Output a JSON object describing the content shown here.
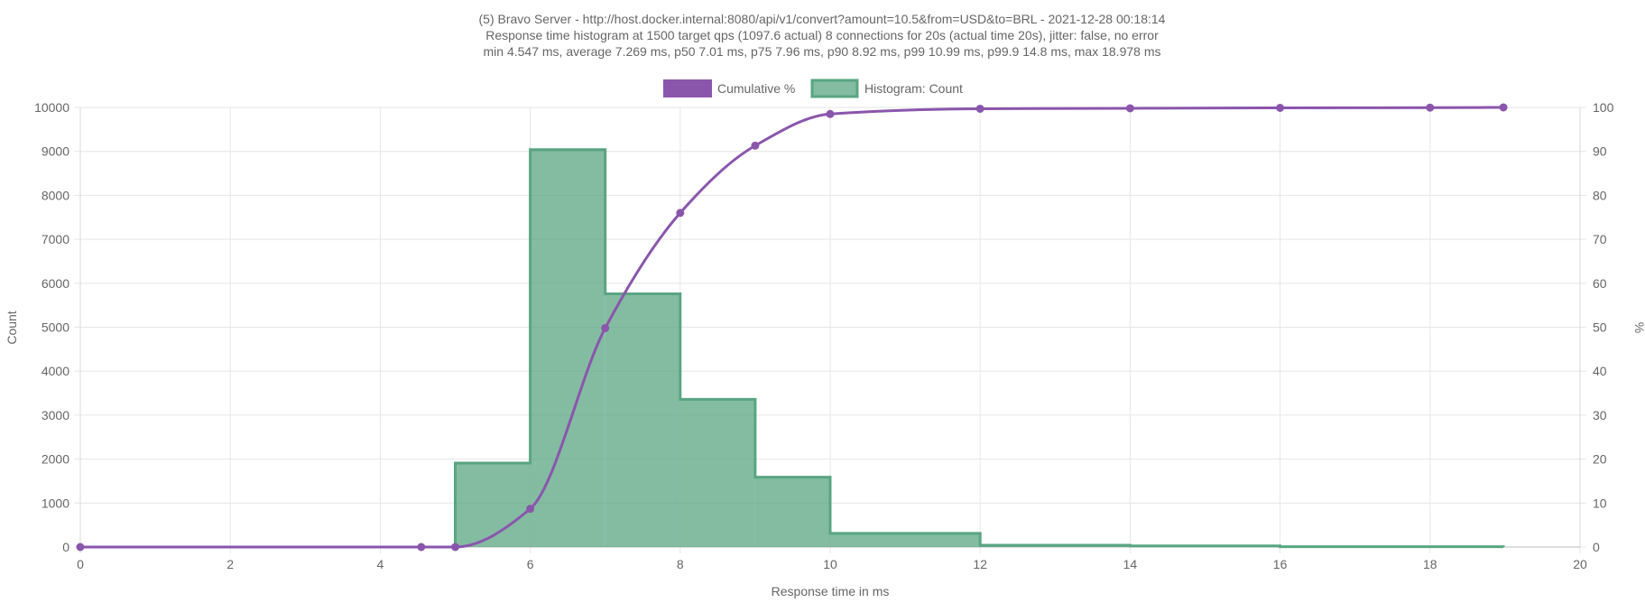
{
  "chart_data": {
    "type": "bar",
    "title_lines": [
      "(5) Bravo Server - http://host.docker.internal:8080/api/v1/convert?amount=10.5&from=USD&to=BRL - 2021-12-28 00:18:14",
      "Response time histogram at 1500 target qps (1097.6 actual) 8 connections for 20s (actual time 20s), jitter: false, no error",
      "min 4.547 ms, average 7.269 ms, p50 7.01 ms, p75 7.96 ms, p90 8.92 ms, p99 10.99 ms, p99.9 14.8 ms, max 18.978 ms"
    ],
    "xlabel": "Response time in ms",
    "ylabel": "Count",
    "y2label": "%",
    "xlim": [
      0,
      20
    ],
    "ylim": [
      0,
      10000
    ],
    "y2lim": [
      0,
      100
    ],
    "x_ticks": [
      "0",
      "2",
      "4",
      "6",
      "8",
      "10",
      "12",
      "14",
      "16",
      "18",
      "20"
    ],
    "y_ticks": [
      "0",
      "1000",
      "2000",
      "3000",
      "4000",
      "5000",
      "6000",
      "7000",
      "8000",
      "9000",
      "10000"
    ],
    "y2_ticks": [
      "0",
      "10",
      "20",
      "30",
      "40",
      "50",
      "60",
      "70",
      "80",
      "90",
      "100"
    ],
    "grid": true,
    "legend_position": "top",
    "series": [
      {
        "name": "Cumulative %",
        "type": "line",
        "axis": "right",
        "color": "#8a56ac",
        "points": [
          {
            "x": 0,
            "y": 0
          },
          {
            "x": 4.547,
            "y": 0
          },
          {
            "x": 5,
            "y": 0.01
          },
          {
            "x": 6,
            "y": 8.7
          },
          {
            "x": 7,
            "y": 49.8
          },
          {
            "x": 8,
            "y": 76.0
          },
          {
            "x": 9,
            "y": 91.3
          },
          {
            "x": 10,
            "y": 98.5
          },
          {
            "x": 12,
            "y": 99.7
          },
          {
            "x": 14,
            "y": 99.8
          },
          {
            "x": 16,
            "y": 99.9
          },
          {
            "x": 18,
            "y": 99.95
          },
          {
            "x": 18.978,
            "y": 100
          }
        ]
      },
      {
        "name": "Histogram: Count",
        "type": "histogram",
        "axis": "left",
        "color": "#59a582",
        "fill": "rgba(89,165,130,0.75)",
        "bins": [
          {
            "start": 5,
            "end": 6,
            "count": 1910
          },
          {
            "start": 6,
            "end": 7,
            "count": 9040
          },
          {
            "start": 7,
            "end": 8,
            "count": 5760
          },
          {
            "start": 8,
            "end": 9,
            "count": 3360
          },
          {
            "start": 9,
            "end": 10,
            "count": 1590
          },
          {
            "start": 10,
            "end": 12,
            "count": 310
          },
          {
            "start": 12,
            "end": 14,
            "count": 40
          },
          {
            "start": 14,
            "end": 16,
            "count": 25
          },
          {
            "start": 16,
            "end": 18.978,
            "count": 8
          }
        ]
      }
    ]
  }
}
